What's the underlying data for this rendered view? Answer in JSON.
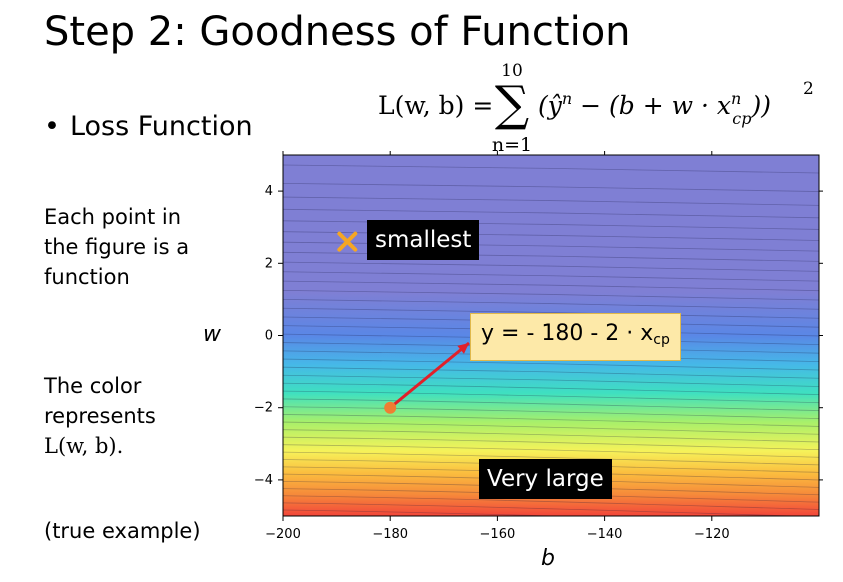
{
  "slide": {
    "title": "Step 2: Goodness of Function",
    "bullet": "•",
    "bullet_text": "Loss Function",
    "desc_lines": [
      "Each point in",
      "the figure is a",
      "function"
    ],
    "color_lines": [
      "The color",
      "represents"
    ],
    "color_formula": "L(w, b).",
    "true_example": "(true example)"
  },
  "formula": {
    "lhs": "L(w, b) =",
    "sum_upper": "10",
    "sum_lower": "n=1",
    "body_open": "(ŷ",
    "body_sup": "n",
    "body_mid": " − (b + w · x",
    "body_sub_sup": "n",
    "body_sub": "cp",
    "body_close": "))",
    "power": "2"
  },
  "annotations": {
    "smallest_label": "smallest",
    "marker_symbol": "×",
    "func_label_main": "y = - 180 - 2 · x",
    "func_label_sub": "cp",
    "very_large_label": "Very large",
    "marker_color": "#f5a623",
    "point_color": "#ef7d32",
    "arrow_color": "#e0202a"
  },
  "chart_data": {
    "type": "heatmap",
    "title": "",
    "xlabel": "b",
    "ylabel": "w",
    "xlim": [
      -200,
      -100
    ],
    "ylim": [
      -5,
      5
    ],
    "xticks": [
      -200,
      -180,
      -160,
      -140,
      -120
    ],
    "yticks": [
      4,
      2,
      0,
      -2,
      -4
    ],
    "grid": false,
    "points": [
      {
        "label": "smallest",
        "b": -188,
        "w": 2.6,
        "marker": "x"
      },
      {
        "label": "y = - 180 - 2 · xcp",
        "b": -180,
        "w": -2,
        "marker": "o"
      }
    ],
    "color_scale": [
      "#7f7fd4",
      "#7f7fd4",
      "#5a87e6",
      "#46b8e8",
      "#3fe0c0",
      "#a8f06a",
      "#f6f25a",
      "#fbbe3f",
      "#f68a3a",
      "#f2453a"
    ]
  }
}
